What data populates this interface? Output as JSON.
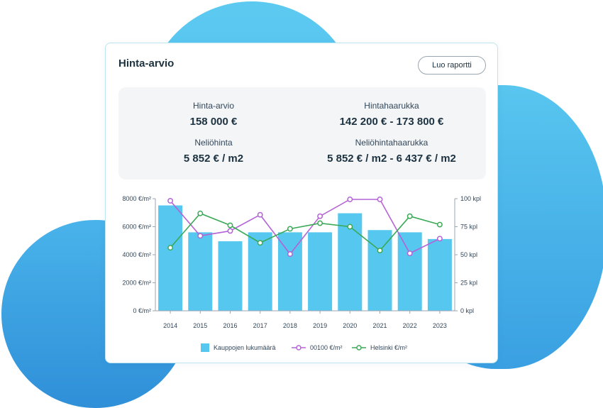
{
  "card": {
    "title": "Hinta-arvio",
    "report_button": "Luo raportti"
  },
  "stats": {
    "price_label": "Hinta-arvio",
    "price_value": "158 000 €",
    "range_label": "Hintahaarukka",
    "range_value": "142 200 € - 173 800 €",
    "sqm_label": "Neliöhinta",
    "sqm_value": "5 852 € / m2",
    "sqm_range_label": "Neliöhintahaarukka",
    "sqm_range_value": "5 852 € / m2 - 6 437 € / m2"
  },
  "colors": {
    "bars": "#56c8f0",
    "line_00100": "#b463d6",
    "line_helsinki": "#3aa956"
  },
  "chart_data": {
    "type": "bar",
    "categories": [
      "2014",
      "2015",
      "2016",
      "2017",
      "2018",
      "2019",
      "2020",
      "2021",
      "2022",
      "2023"
    ],
    "series": [
      {
        "name": "Kauppojen lukumäärä",
        "type": "bar",
        "axis": "right",
        "values": [
          94,
          70,
          62,
          70,
          70,
          70,
          87,
          72,
          70,
          64
        ]
      },
      {
        "name": "00100 €/m²",
        "type": "line",
        "axis": "left",
        "values": [
          7850,
          5350,
          5700,
          6850,
          4050,
          6750,
          7950,
          7950,
          4100,
          5150
        ]
      },
      {
        "name": "Helsinki €/m²",
        "type": "line",
        "axis": "left",
        "values": [
          4500,
          6950,
          6100,
          4850,
          5850,
          6250,
          6000,
          4300,
          6750,
          6150
        ]
      }
    ],
    "y_left": {
      "ylim": [
        0,
        8000
      ],
      "ticks": [
        "0 €/m²",
        "2000 €/m²",
        "4000 €/m²",
        "6000 €/m²",
        "8000 €/m²"
      ]
    },
    "y_right": {
      "ylim": [
        0,
        100
      ],
      "ticks": [
        "0 kpl",
        "25 kpl",
        "50 kpl",
        "75 kpl",
        "100 kpl"
      ]
    },
    "grid": false,
    "legend_position": "bottom"
  }
}
